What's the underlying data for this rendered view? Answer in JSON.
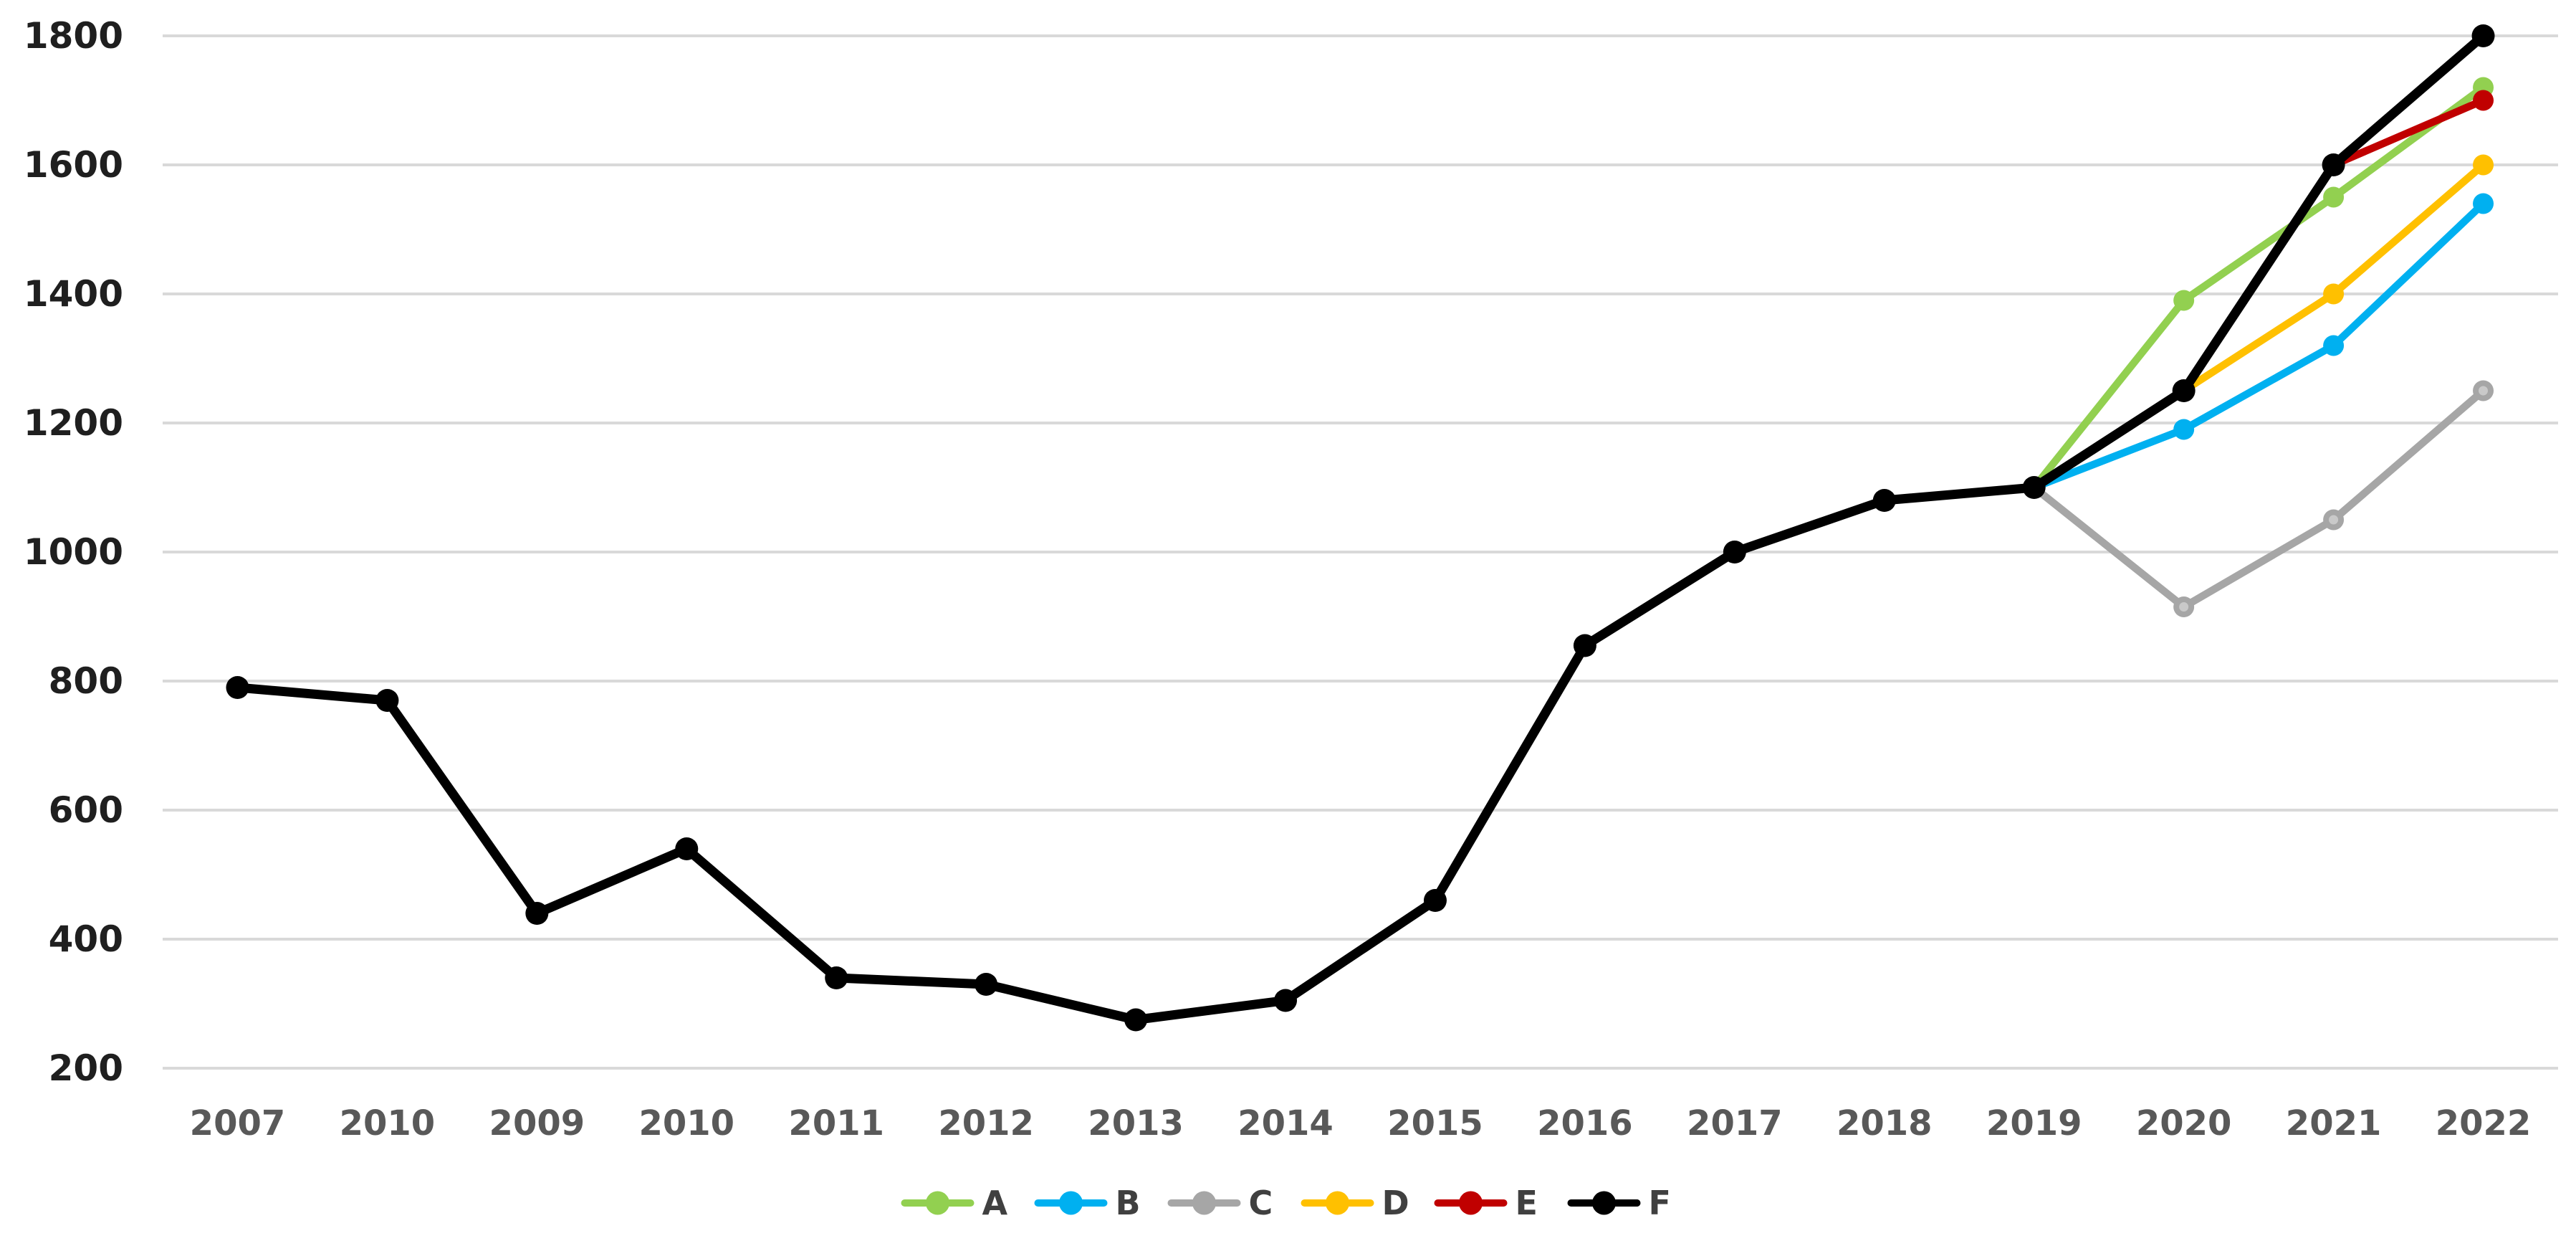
{
  "chart_data": {
    "type": "line",
    "title": "",
    "xlabel": "",
    "ylabel": "",
    "categories": [
      "2007",
      "2010",
      "2009",
      "2010",
      "2011",
      "2012",
      "2013",
      "2014",
      "2015",
      "2016",
      "2017",
      "2018",
      "2019",
      "2020",
      "2021",
      "2022"
    ],
    "series": [
      {
        "name": "A",
        "color": "#92D050",
        "values": [
          null,
          null,
          null,
          null,
          null,
          null,
          null,
          null,
          null,
          null,
          null,
          null,
          1100,
          1390,
          1550,
          1720
        ]
      },
      {
        "name": "B",
        "color": "#00B0F0",
        "values": [
          null,
          null,
          null,
          null,
          null,
          null,
          null,
          null,
          null,
          null,
          null,
          null,
          1100,
          1190,
          1320,
          1540
        ]
      },
      {
        "name": "C",
        "color": "#A6A6A6",
        "marker_inner_color": "#C9C9C9",
        "values": [
          null,
          null,
          null,
          null,
          null,
          null,
          null,
          null,
          null,
          null,
          null,
          null,
          1100,
          915,
          1050,
          1250
        ]
      },
      {
        "name": "D",
        "color": "#FFC000",
        "values": [
          null,
          null,
          null,
          null,
          null,
          null,
          null,
          null,
          null,
          null,
          null,
          null,
          null,
          1250,
          1400,
          1600
        ]
      },
      {
        "name": "E",
        "color": "#C00000",
        "values": [
          null,
          null,
          null,
          null,
          null,
          null,
          null,
          null,
          null,
          null,
          null,
          null,
          null,
          null,
          1600,
          1700
        ]
      },
      {
        "name": "F",
        "color": "#000000",
        "values": [
          790,
          770,
          440,
          540,
          340,
          330,
          275,
          305,
          460,
          855,
          1000,
          1080,
          1100,
          1250,
          1600,
          1800
        ]
      }
    ],
    "y_ticks": [
      1800,
      1600,
      1400,
      1200,
      1000,
      800,
      600,
      400,
      200
    ],
    "ylim": [
      200,
      1800
    ],
    "grid": true,
    "legend_position": "bottom",
    "legend_entries": [
      "A",
      "B",
      "C",
      "D",
      "E",
      "F"
    ]
  },
  "style": {
    "background": "#FFFFFF",
    "grid_color": "#D9D9D9",
    "y_tick_color": "#1F1F1F",
    "x_tick_color": "#595959",
    "legend_text_color": "#404040"
  }
}
